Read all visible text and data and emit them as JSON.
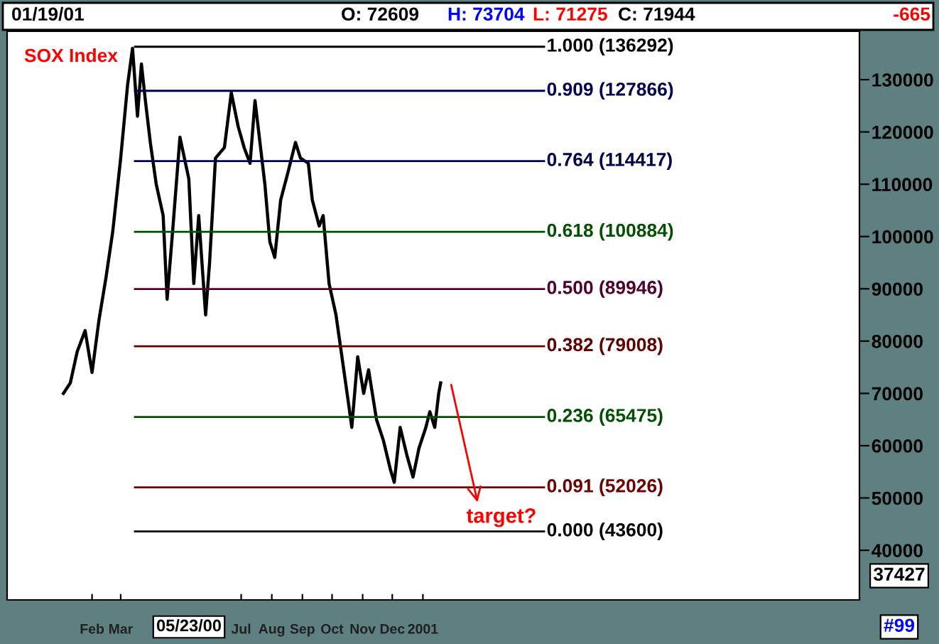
{
  "chart_data": {
    "type": "line",
    "title": "SOX Index",
    "x": [
      "2000-01-03",
      "2000-01-10",
      "2000-01-17",
      "2000-01-25",
      "2000-02-01",
      "2000-02-08",
      "2000-02-15",
      "2000-02-22",
      "2000-03-01",
      "2000-03-08",
      "2000-03-13",
      "2000-03-18",
      "2000-03-22",
      "2000-03-26",
      "2000-03-31",
      "2000-04-06",
      "2000-04-13",
      "2000-04-17",
      "2000-04-23",
      "2000-04-30",
      "2000-05-09",
      "2000-05-14",
      "2000-05-19",
      "2000-05-26",
      "2000-05-30",
      "2000-06-05",
      "2000-06-14",
      "2000-06-21",
      "2000-06-28",
      "2000-07-04",
      "2000-07-10",
      "2000-07-15",
      "2000-07-20",
      "2000-07-25",
      "2000-07-30",
      "2000-08-04",
      "2000-08-10",
      "2000-08-17",
      "2000-08-25",
      "2000-08-30",
      "2000-09-07",
      "2000-09-11",
      "2000-09-18",
      "2000-09-22",
      "2000-09-28",
      "2000-10-05",
      "2000-10-11",
      "2000-10-17",
      "2000-10-21",
      "2000-10-27",
      "2000-11-02",
      "2000-11-07",
      "2000-11-15",
      "2000-11-22",
      "2000-11-29",
      "2000-12-03",
      "2000-12-09",
      "2000-12-16",
      "2000-12-22",
      "2000-12-28",
      "2001-01-04",
      "2001-01-08",
      "2001-01-13",
      "2001-01-17",
      "2001-01-19"
    ],
    "series": [
      {
        "color": "#000000",
        "values": [
          70000,
          72000,
          78000,
          82000,
          74000,
          84000,
          92000,
          101000,
          115000,
          129000,
          136000,
          123000,
          133000,
          126000,
          118000,
          110000,
          104000,
          88000,
          102000,
          119000,
          111000,
          91000,
          104000,
          85000,
          95000,
          115000,
          117000,
          127500,
          121000,
          117000,
          114000,
          126000,
          118000,
          110000,
          99000,
          96000,
          107000,
          112000,
          118000,
          115000,
          114000,
          107000,
          102000,
          104000,
          91000,
          85000,
          77000,
          69000,
          63500,
          77000,
          70000,
          74500,
          65000,
          61000,
          55500,
          53000,
          63500,
          58000,
          54000,
          59500,
          63500,
          66500,
          63500,
          70000,
          72000
        ]
      }
    ],
    "xlim": [
      "1999-11-07",
      "2002-03-19"
    ],
    "xticks": [
      {
        "value": "2000-02-01",
        "label": "Feb"
      },
      {
        "value": "2000-03-01",
        "label": "Mar"
      },
      {
        "value": "2000-07-01",
        "label": "Jul"
      },
      {
        "value": "2000-08-01",
        "label": "Aug"
      },
      {
        "value": "2000-09-01",
        "label": "Sep"
      },
      {
        "value": "2000-10-01",
        "label": "Oct"
      },
      {
        "value": "2000-11-01",
        "label": "Nov"
      },
      {
        "value": "2000-12-01",
        "label": "Dec"
      },
      {
        "value": "2001-01-01",
        "label": "2001"
      }
    ],
    "ylim": [
      30500,
      139250
    ],
    "yticks": [
      40000,
      50000,
      60000,
      70000,
      80000,
      90000,
      100000,
      110000,
      120000,
      130000
    ],
    "grid": false,
    "legend": false,
    "marker": "none",
    "line_style": "solid",
    "ref_lines": [
      {
        "axis": "y",
        "value": 136292,
        "label": "1.000 (136292)",
        "color": "#000000"
      },
      {
        "axis": "y",
        "value": 127866,
        "label": "0.909 (127866)",
        "color": "#000050"
      },
      {
        "axis": "y",
        "value": 114417,
        "label": "0.764 (114417)",
        "color": "#000050"
      },
      {
        "axis": "y",
        "value": 100884,
        "label": "0.618 (100884)",
        "color": "#005000"
      },
      {
        "axis": "y",
        "value": 89946,
        "label": "0.500 (89946)",
        "color": "#500030"
      },
      {
        "axis": "y",
        "value": 79008,
        "label": "0.382 (79008)",
        "color": "#600000"
      },
      {
        "axis": "y",
        "value": 65475,
        "label": "0.236 (65475)",
        "color": "#005000"
      },
      {
        "axis": "y",
        "value": 52026,
        "label": "0.091 (52026)",
        "color": "#700000"
      },
      {
        "axis": "y",
        "value": 43600,
        "label": "0.000 (43600)",
        "color": "#000000"
      }
    ],
    "annotations": [
      "01/19/01",
      "O: 72609",
      "H: 73704",
      "L: 71275",
      "C: 71944",
      "-665",
      "05/23/00",
      "37427",
      "#99",
      "target?"
    ]
  }
}
